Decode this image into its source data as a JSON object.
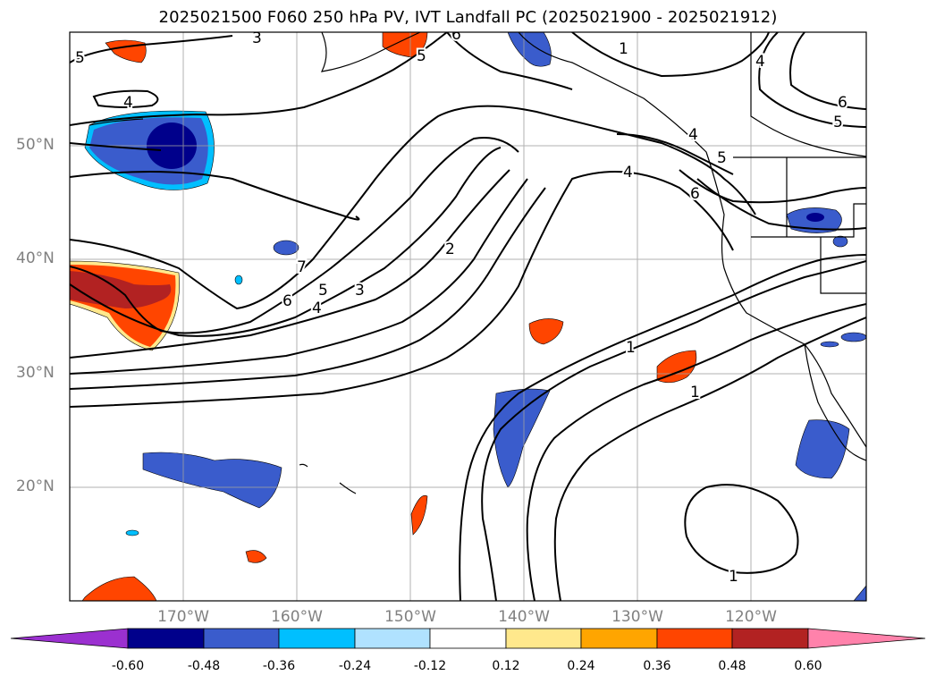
{
  "title": "2025021500 F060 250 hPa PV, IVT Landfall PC (2025021900 - 2025021912)",
  "map": {
    "lat_labels": [
      "50°N",
      "40°N",
      "30°N",
      "20°N"
    ],
    "lon_labels": [
      "170°W",
      "160°W",
      "150°W",
      "140°W",
      "130°W",
      "120°W"
    ],
    "contour_labels": [
      "5",
      "3",
      "6",
      "5",
      "1",
      "4",
      "4",
      "6",
      "5",
      "4",
      "5",
      "6",
      "4",
      "2",
      "7",
      "6",
      "5",
      "4",
      "3",
      "1",
      "1",
      "1"
    ]
  },
  "colorbar": {
    "ticks": [
      "-0.60",
      "-0.48",
      "-0.36",
      "-0.24",
      "-0.12",
      "0.12",
      "0.24",
      "0.36",
      "0.48",
      "0.60"
    ],
    "colors": [
      "#9b30d0",
      "#00008b",
      "#3a5ccc",
      "#00bfff",
      "#b0e2ff",
      "#ffffff",
      "#ffe88c",
      "#ffa500",
      "#ff4500",
      "#b22222",
      "#ff82ab"
    ]
  }
}
